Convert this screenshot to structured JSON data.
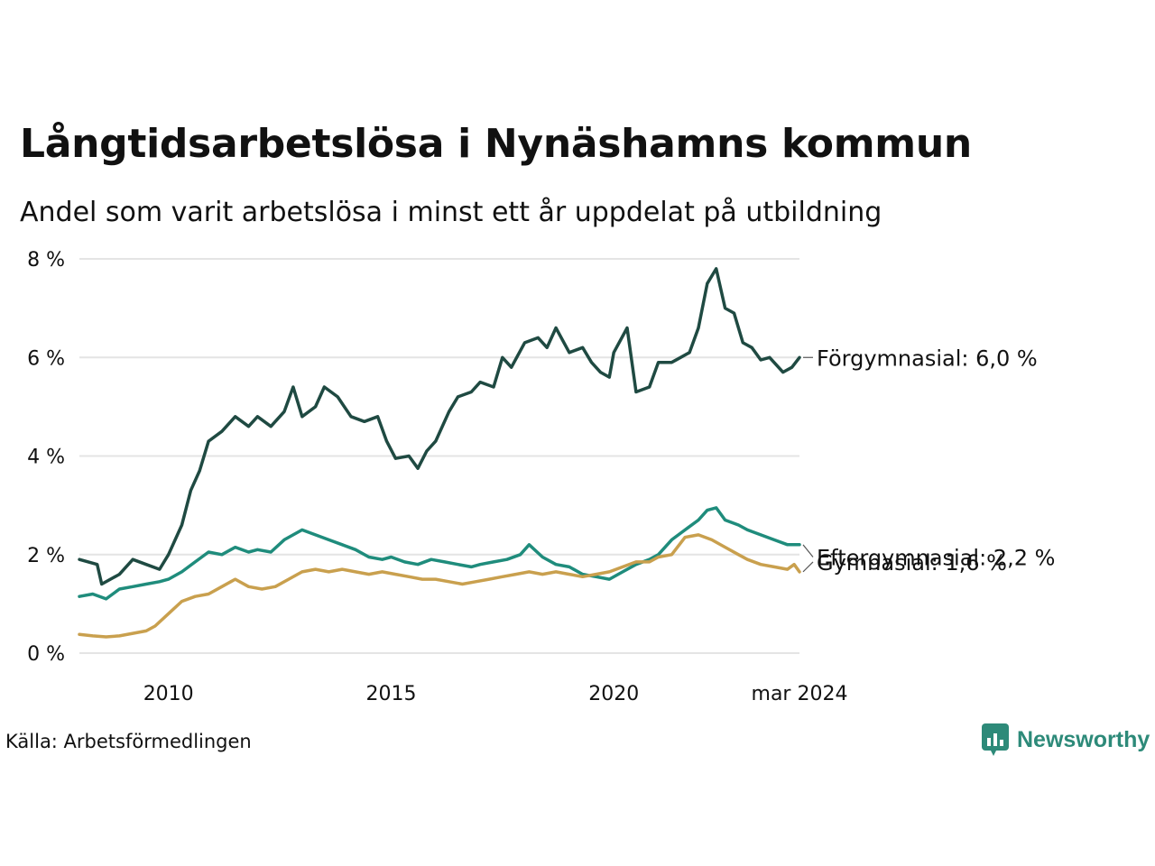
{
  "title": "Långtidsarbetslösa i Nynäshamns kommun",
  "subtitle": "Andel som varit arbetslösa i minst ett år uppdelat på utbildning",
  "source": "Källa: Arbetsförmedlingen",
  "brand": "Newsworthy",
  "colors": {
    "forgymnasial": "#1f4a42",
    "eftergymnasial": "#1f8c7c",
    "gymnasial": "#c9a04e",
    "grid": "#e4e4e4",
    "brand": "#2d8a79"
  },
  "chart_data": {
    "type": "line",
    "title": "Långtidsarbetslösa i Nynäshamns kommun",
    "ylim": [
      0,
      8
    ],
    "yticks": [
      0,
      2,
      4,
      6,
      8
    ],
    "ytick_labels": [
      "0 %",
      "2 %",
      "4 %",
      "6 %",
      "8 %"
    ],
    "xlim": [
      2008.0,
      2024.17
    ],
    "xticks": [
      2010,
      2015,
      2020,
      2024.17
    ],
    "xtick_labels": [
      "2010",
      "2015",
      "2020",
      "mar 2024"
    ],
    "series": [
      {
        "name": "Förgymnasial",
        "label": "Förgymnasial: 6,0 %",
        "color_key": "forgymnasial",
        "points": [
          [
            2008.0,
            1.9
          ],
          [
            2008.4,
            1.8
          ],
          [
            2008.5,
            1.4
          ],
          [
            2008.9,
            1.6
          ],
          [
            2009.2,
            1.9
          ],
          [
            2009.5,
            1.8
          ],
          [
            2009.8,
            1.7
          ],
          [
            2010.0,
            2.0
          ],
          [
            2010.3,
            2.6
          ],
          [
            2010.5,
            3.3
          ],
          [
            2010.7,
            3.7
          ],
          [
            2010.9,
            4.3
          ],
          [
            2011.2,
            4.5
          ],
          [
            2011.5,
            4.8
          ],
          [
            2011.8,
            4.6
          ],
          [
            2012.0,
            4.8
          ],
          [
            2012.3,
            4.6
          ],
          [
            2012.6,
            4.9
          ],
          [
            2012.8,
            5.4
          ],
          [
            2013.0,
            4.8
          ],
          [
            2013.3,
            5.0
          ],
          [
            2013.5,
            5.4
          ],
          [
            2013.8,
            5.2
          ],
          [
            2014.1,
            4.8
          ],
          [
            2014.4,
            4.7
          ],
          [
            2014.7,
            4.8
          ],
          [
            2014.9,
            4.3
          ],
          [
            2015.1,
            3.95
          ],
          [
            2015.4,
            4.0
          ],
          [
            2015.6,
            3.75
          ],
          [
            2015.8,
            4.1
          ],
          [
            2016.0,
            4.3
          ],
          [
            2016.3,
            4.9
          ],
          [
            2016.5,
            5.2
          ],
          [
            2016.8,
            5.3
          ],
          [
            2017.0,
            5.5
          ],
          [
            2017.3,
            5.4
          ],
          [
            2017.5,
            6.0
          ],
          [
            2017.7,
            5.8
          ],
          [
            2018.0,
            6.3
          ],
          [
            2018.3,
            6.4
          ],
          [
            2018.5,
            6.2
          ],
          [
            2018.7,
            6.6
          ],
          [
            2019.0,
            6.1
          ],
          [
            2019.3,
            6.2
          ],
          [
            2019.5,
            5.9
          ],
          [
            2019.7,
            5.7
          ],
          [
            2019.9,
            5.6
          ],
          [
            2020.0,
            6.1
          ],
          [
            2020.3,
            6.6
          ],
          [
            2020.5,
            5.3
          ],
          [
            2020.8,
            5.4
          ],
          [
            2021.0,
            5.9
          ],
          [
            2021.3,
            5.9
          ],
          [
            2021.5,
            6.0
          ],
          [
            2021.7,
            6.1
          ],
          [
            2021.9,
            6.6
          ],
          [
            2022.1,
            7.5
          ],
          [
            2022.3,
            7.8
          ],
          [
            2022.5,
            7.0
          ],
          [
            2022.7,
            6.9
          ],
          [
            2022.9,
            6.3
          ],
          [
            2023.1,
            6.2
          ],
          [
            2023.3,
            5.95
          ],
          [
            2023.5,
            6.0
          ],
          [
            2023.8,
            5.7
          ],
          [
            2024.0,
            5.8
          ],
          [
            2024.17,
            6.0
          ]
        ]
      },
      {
        "name": "Eftergymnasial",
        "label": "Eftergymnasial: 2,2 %",
        "color_key": "eftergymnasial",
        "points": [
          [
            2008.0,
            1.15
          ],
          [
            2008.3,
            1.2
          ],
          [
            2008.6,
            1.1
          ],
          [
            2008.9,
            1.3
          ],
          [
            2009.2,
            1.35
          ],
          [
            2009.5,
            1.4
          ],
          [
            2009.8,
            1.45
          ],
          [
            2010.0,
            1.5
          ],
          [
            2010.3,
            1.65
          ],
          [
            2010.6,
            1.85
          ],
          [
            2010.9,
            2.05
          ],
          [
            2011.2,
            2.0
          ],
          [
            2011.5,
            2.15
          ],
          [
            2011.8,
            2.05
          ],
          [
            2012.0,
            2.1
          ],
          [
            2012.3,
            2.05
          ],
          [
            2012.6,
            2.3
          ],
          [
            2012.8,
            2.4
          ],
          [
            2013.0,
            2.5
          ],
          [
            2013.3,
            2.4
          ],
          [
            2013.6,
            2.3
          ],
          [
            2013.9,
            2.2
          ],
          [
            2014.2,
            2.1
          ],
          [
            2014.5,
            1.95
          ],
          [
            2014.8,
            1.9
          ],
          [
            2015.0,
            1.95
          ],
          [
            2015.3,
            1.85
          ],
          [
            2015.6,
            1.8
          ],
          [
            2015.9,
            1.9
          ],
          [
            2016.2,
            1.85
          ],
          [
            2016.5,
            1.8
          ],
          [
            2016.8,
            1.75
          ],
          [
            2017.0,
            1.8
          ],
          [
            2017.3,
            1.85
          ],
          [
            2017.6,
            1.9
          ],
          [
            2017.9,
            2.0
          ],
          [
            2018.1,
            2.2
          ],
          [
            2018.4,
            1.95
          ],
          [
            2018.7,
            1.8
          ],
          [
            2019.0,
            1.75
          ],
          [
            2019.3,
            1.6
          ],
          [
            2019.6,
            1.55
          ],
          [
            2019.9,
            1.5
          ],
          [
            2020.2,
            1.65
          ],
          [
            2020.5,
            1.8
          ],
          [
            2020.8,
            1.9
          ],
          [
            2021.0,
            2.0
          ],
          [
            2021.3,
            2.3
          ],
          [
            2021.6,
            2.5
          ],
          [
            2021.9,
            2.7
          ],
          [
            2022.1,
            2.9
          ],
          [
            2022.3,
            2.95
          ],
          [
            2022.5,
            2.7
          ],
          [
            2022.8,
            2.6
          ],
          [
            2023.0,
            2.5
          ],
          [
            2023.3,
            2.4
          ],
          [
            2023.6,
            2.3
          ],
          [
            2023.9,
            2.2
          ],
          [
            2024.17,
            2.2
          ]
        ]
      },
      {
        "name": "Gymnasial",
        "label": "Gymnasial: 1,6 %",
        "color_key": "gymnasial",
        "points": [
          [
            2008.0,
            0.38
          ],
          [
            2008.3,
            0.35
          ],
          [
            2008.6,
            0.33
          ],
          [
            2008.9,
            0.35
          ],
          [
            2009.2,
            0.4
          ],
          [
            2009.5,
            0.45
          ],
          [
            2009.7,
            0.55
          ],
          [
            2010.0,
            0.8
          ],
          [
            2010.3,
            1.05
          ],
          [
            2010.6,
            1.15
          ],
          [
            2010.9,
            1.2
          ],
          [
            2011.2,
            1.35
          ],
          [
            2011.5,
            1.5
          ],
          [
            2011.8,
            1.35
          ],
          [
            2012.1,
            1.3
          ],
          [
            2012.4,
            1.35
          ],
          [
            2012.7,
            1.5
          ],
          [
            2013.0,
            1.65
          ],
          [
            2013.3,
            1.7
          ],
          [
            2013.6,
            1.65
          ],
          [
            2013.9,
            1.7
          ],
          [
            2014.2,
            1.65
          ],
          [
            2014.5,
            1.6
          ],
          [
            2014.8,
            1.65
          ],
          [
            2015.1,
            1.6
          ],
          [
            2015.4,
            1.55
          ],
          [
            2015.7,
            1.5
          ],
          [
            2016.0,
            1.5
          ],
          [
            2016.3,
            1.45
          ],
          [
            2016.6,
            1.4
          ],
          [
            2016.9,
            1.45
          ],
          [
            2017.2,
            1.5
          ],
          [
            2017.5,
            1.55
          ],
          [
            2017.8,
            1.6
          ],
          [
            2018.1,
            1.65
          ],
          [
            2018.4,
            1.6
          ],
          [
            2018.7,
            1.65
          ],
          [
            2019.0,
            1.6
          ],
          [
            2019.3,
            1.55
          ],
          [
            2019.6,
            1.6
          ],
          [
            2019.9,
            1.65
          ],
          [
            2020.2,
            1.75
          ],
          [
            2020.5,
            1.85
          ],
          [
            2020.8,
            1.85
          ],
          [
            2021.0,
            1.95
          ],
          [
            2021.3,
            2.0
          ],
          [
            2021.6,
            2.35
          ],
          [
            2021.9,
            2.4
          ],
          [
            2022.2,
            2.3
          ],
          [
            2022.5,
            2.15
          ],
          [
            2022.8,
            2.0
          ],
          [
            2023.0,
            1.9
          ],
          [
            2023.3,
            1.8
          ],
          [
            2023.6,
            1.75
          ],
          [
            2023.9,
            1.7
          ],
          [
            2024.05,
            1.8
          ],
          [
            2024.17,
            1.65
          ]
        ]
      }
    ]
  }
}
